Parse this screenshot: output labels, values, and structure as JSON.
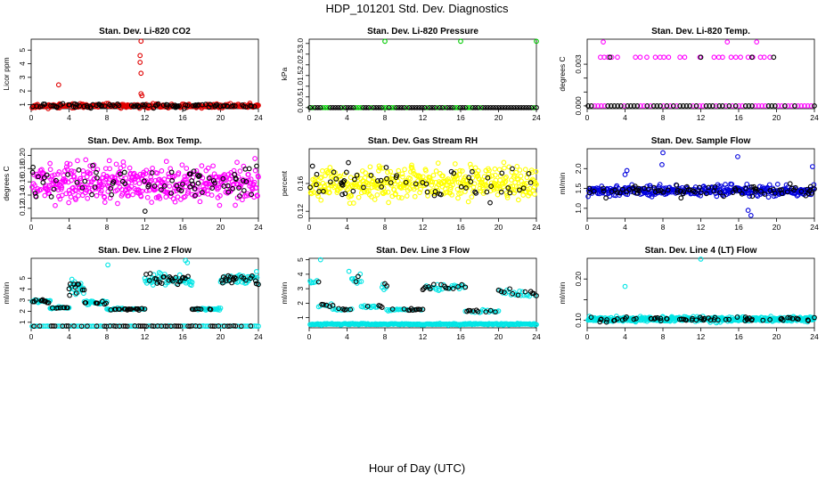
{
  "page": {
    "title": "HDP_101201  Std. Dev. Diagnostics",
    "xlabel": "Hour of Day (UTC)"
  },
  "colors": {
    "red": "#e00000",
    "green": "#00cc00",
    "magenta": "#ff00ff",
    "yellow": "#ffff00",
    "blue": "#0000dd",
    "cyan": "#00e5e5",
    "black": "#000000"
  },
  "chart_data": [
    {
      "type": "scatter",
      "id": "co2",
      "title": "Stan. Dev. Li-820 CO2",
      "ylabel": "Licor ppm",
      "color": "red",
      "xlim": [
        0,
        24
      ],
      "ylim": [
        0.7,
        5.8
      ],
      "xticks": [
        0,
        4,
        8,
        12,
        16,
        20,
        24
      ],
      "yticks": [
        1,
        2,
        3,
        4,
        5
      ],
      "base": 0.9,
      "spread": 0.15,
      "n": 340,
      "blackFrac": 0.3,
      "seed": 11,
      "extra_points": [
        [
          2.9,
          2.45
        ],
        [
          11.6,
          5.65
        ],
        [
          11.5,
          4.6
        ],
        [
          11.5,
          4.1
        ],
        [
          11.6,
          3.3
        ],
        [
          11.6,
          1.8
        ],
        [
          11.7,
          1.65
        ],
        [
          3.0,
          1.05
        ],
        [
          19.6,
          1.05
        ],
        [
          23.1,
          1.1
        ]
      ]
    },
    {
      "type": "scatter",
      "id": "pressure",
      "title": "Stan. Dev. Li-820 Pressure",
      "ylabel": "kPa",
      "color": "green",
      "xlim": [
        0,
        24
      ],
      "ylim": [
        -0.05,
        3.2
      ],
      "xticks": [
        0,
        4,
        8,
        12,
        16,
        20,
        24
      ],
      "yticks": [
        0.0,
        0.5,
        1.0,
        1.5,
        2.0,
        2.5,
        3.0
      ],
      "base": 0.0,
      "spread": 0.0,
      "n": 90,
      "blackFrac": 0.7,
      "seed": 22,
      "extra_points": [
        [
          8.0,
          3.1
        ],
        [
          16.0,
          3.1
        ],
        [
          24.0,
          3.1
        ],
        [
          0.1,
          0.0
        ]
      ]
    },
    {
      "type": "scatter",
      "id": "temp",
      "title": "Stan. Dev. Li-820 Temp.",
      "ylabel": "degrees C",
      "color": "magenta",
      "xlim": [
        0,
        24
      ],
      "ylim": [
        -0.0002,
        0.0048
      ],
      "xticks": [
        0,
        4,
        8,
        12,
        16,
        20,
        24
      ],
      "yticks": [
        0.0,
        0.001,
        0.002,
        0.003
      ],
      "ytick_labels": [
        "0.000",
        "",
        "",
        "0.003"
      ],
      "base": 0.0,
      "spread": 0.0,
      "n": 70,
      "blackFrac": 0.5,
      "seed": 33,
      "extra_points": [
        [
          1.4,
          0.0035
        ],
        [
          1.8,
          0.0035
        ],
        [
          2.2,
          0.0035
        ],
        [
          1.7,
          0.0046
        ],
        [
          2.6,
          0.0035
        ],
        [
          3.2,
          0.0035
        ],
        [
          5.1,
          0.0035
        ],
        [
          5.6,
          0.0035
        ],
        [
          6.3,
          0.0035
        ],
        [
          7.2,
          0.0035
        ],
        [
          7.7,
          0.0035
        ],
        [
          8.1,
          0.0035
        ],
        [
          8.6,
          0.0035
        ],
        [
          9.8,
          0.0035
        ],
        [
          10.3,
          0.0035
        ],
        [
          11.9,
          0.0035
        ],
        [
          13.4,
          0.0035
        ],
        [
          13.9,
          0.0035
        ],
        [
          14.3,
          0.0035
        ],
        [
          14.8,
          0.0046
        ],
        [
          15.2,
          0.0035
        ],
        [
          15.7,
          0.0035
        ],
        [
          16.2,
          0.0035
        ],
        [
          17.0,
          0.0035
        ],
        [
          17.5,
          0.0035
        ],
        [
          17.9,
          0.0046
        ],
        [
          18.3,
          0.0035
        ],
        [
          18.7,
          0.0035
        ],
        [
          19.3,
          0.0035
        ]
      ],
      "extra_black": [
        [
          2.4,
          0.0035
        ],
        [
          12.0,
          0.0035
        ],
        [
          17.4,
          0.0035
        ],
        [
          19.7,
          0.0035
        ]
      ]
    },
    {
      "type": "scatter",
      "id": "ambbox",
      "title": "Stan. Dev. Amb. Box Temp.",
      "ylabel": "degrees C",
      "color": "magenta",
      "xlim": [
        0,
        24
      ],
      "ylim": [
        0.105,
        0.21
      ],
      "xticks": [
        0,
        4,
        8,
        12,
        16,
        20,
        24
      ],
      "yticks": [
        0.12,
        0.14,
        0.16,
        0.18,
        0.2
      ],
      "base": 0.158,
      "spread": 0.028,
      "n": 520,
      "blackFrac": 0.14,
      "seed": 44,
      "extra_points": []
    },
    {
      "type": "scatter",
      "id": "rh",
      "title": "Stan. Dev. Gas Stream RH",
      "ylabel": "percent",
      "color": "yellow",
      "xlim": [
        0,
        24
      ],
      "ylim": [
        0.11,
        0.21
      ],
      "xticks": [
        0,
        4,
        8,
        12,
        16,
        20,
        24
      ],
      "yticks": [
        0.12,
        0.16
      ],
      "base": 0.16,
      "spread": 0.022,
      "n": 480,
      "blackFrac": 0.12,
      "seed": 55,
      "extra_points": []
    },
    {
      "type": "scatter",
      "id": "sampleflow",
      "title": "Stan. Dev. Sample Flow",
      "ylabel": "ml/min",
      "color": "blue",
      "xlim": [
        0,
        24
      ],
      "ylim": [
        0.75,
        2.5
      ],
      "xticks": [
        0,
        4,
        8,
        12,
        16,
        20,
        24
      ],
      "yticks": [
        1.0,
        1.5,
        2.0
      ],
      "base": 1.45,
      "spread": 0.13,
      "n": 420,
      "blackFrac": 0.2,
      "seed": 66,
      "extra_points": [
        [
          8.0,
          2.4
        ],
        [
          15.9,
          2.3
        ],
        [
          23.8,
          2.05
        ],
        [
          7.9,
          2.1
        ],
        [
          17.3,
          0.82
        ],
        [
          17.0,
          0.95
        ],
        [
          4.2,
          1.95
        ],
        [
          4.0,
          1.85
        ]
      ]
    },
    {
      "type": "scatter",
      "id": "line2",
      "title": "Stan. Dev. Line 2 Flow",
      "ylabel": "ml/min",
      "color": "cyan",
      "xlim": [
        0,
        24
      ],
      "ylim": [
        0.5,
        6.8
      ],
      "xticks": [
        0,
        4,
        8,
        12,
        16,
        20,
        24
      ],
      "yticks": [
        1,
        2,
        3,
        4,
        5
      ],
      "base": 0.65,
      "spread": 0.02,
      "n": 120,
      "blackFrac": 0.5,
      "seed": 77,
      "segments": [
        {
          "x0": 0.1,
          "x1": 2.0,
          "y": 2.9,
          "jit": 0.18,
          "n": 25
        },
        {
          "x0": 2.0,
          "x1": 4.0,
          "y": 2.3,
          "jit": 0.08,
          "n": 25
        },
        {
          "x0": 4.0,
          "x1": 5.6,
          "y": 4.1,
          "jit": 0.55,
          "n": 28
        },
        {
          "x0": 5.6,
          "x1": 8.0,
          "y": 2.8,
          "jit": 0.18,
          "n": 30
        },
        {
          "x0": 8.0,
          "x1": 12.0,
          "y": 2.2,
          "jit": 0.08,
          "n": 40
        },
        {
          "x0": 12.0,
          "x1": 17.0,
          "y": 4.8,
          "jit": 0.55,
          "n": 70
        },
        {
          "x0": 17.0,
          "x1": 20.0,
          "y": 2.2,
          "jit": 0.08,
          "n": 30
        },
        {
          "x0": 20.0,
          "x1": 24.0,
          "y": 4.9,
          "jit": 0.45,
          "n": 55
        }
      ],
      "extra_points": [
        [
          8.1,
          6.2
        ],
        [
          16.3,
          6.6
        ],
        [
          16.5,
          6.4
        ],
        [
          4.3,
          4.9
        ],
        [
          23.8,
          5.6
        ]
      ]
    },
    {
      "type": "scatter",
      "id": "line3",
      "title": "Stan. Dev. Line 3 Flow",
      "ylabel": "ml/min",
      "color": "cyan",
      "xlim": [
        0,
        24
      ],
      "ylim": [
        0.3,
        5.1
      ],
      "xticks": [
        0,
        4,
        8,
        12,
        16,
        20,
        24
      ],
      "yticks": [
        1,
        2,
        3,
        4,
        5
      ],
      "base": 0.55,
      "spread": 0.05,
      "n": 240,
      "blackFrac": 0.0,
      "seed": 88,
      "segments": [
        {
          "x0": 0.1,
          "x1": 1.0,
          "y": 3.5,
          "jit": 0.15,
          "n": 6
        },
        {
          "x0": 1.0,
          "x1": 2.5,
          "y": 1.85,
          "jit": 0.1,
          "n": 10
        },
        {
          "x0": 2.5,
          "x1": 4.5,
          "y": 1.55,
          "jit": 0.08,
          "n": 14
        },
        {
          "x0": 4.5,
          "x1": 5.5,
          "y": 3.7,
          "jit": 0.4,
          "n": 10
        },
        {
          "x0": 5.5,
          "x1": 7.7,
          "y": 1.75,
          "jit": 0.1,
          "n": 14
        },
        {
          "x0": 7.7,
          "x1": 8.2,
          "y": 3.1,
          "jit": 0.3,
          "n": 6
        },
        {
          "x0": 8.2,
          "x1": 12.0,
          "y": 1.55,
          "jit": 0.08,
          "n": 26
        },
        {
          "x0": 12.0,
          "x1": 16.5,
          "y": 3.1,
          "jit": 0.25,
          "n": 36
        },
        {
          "x0": 16.5,
          "x1": 20.0,
          "y": 1.45,
          "jit": 0.08,
          "n": 22
        },
        {
          "x0": 20.0,
          "x1": 24.0,
          "y": 2.7,
          "jit": 0.3,
          "n": 28
        }
      ],
      "extra_points": [
        [
          1.2,
          5.0
        ],
        [
          4.2,
          4.2
        ],
        [
          0.2,
          3.4
        ]
      ]
    },
    {
      "type": "scatter",
      "id": "line4",
      "title": "Stan. Dev. Line 4 (LT) Flow",
      "ylabel": "ml/min",
      "color": "cyan",
      "xlim": [
        0,
        24
      ],
      "ylim": [
        0.082,
        0.25
      ],
      "xticks": [
        0,
        4,
        8,
        12,
        16,
        20,
        24
      ],
      "yticks": [
        0.1,
        0.15,
        0.2
      ],
      "ytick_labels": [
        "0.10",
        "",
        "0.20"
      ],
      "base": 0.103,
      "spread": 0.006,
      "n": 520,
      "blackFrac": 0.12,
      "seed": 99,
      "extra_points": [
        [
          4.0,
          0.182
        ],
        [
          12.0,
          0.248
        ]
      ]
    }
  ]
}
